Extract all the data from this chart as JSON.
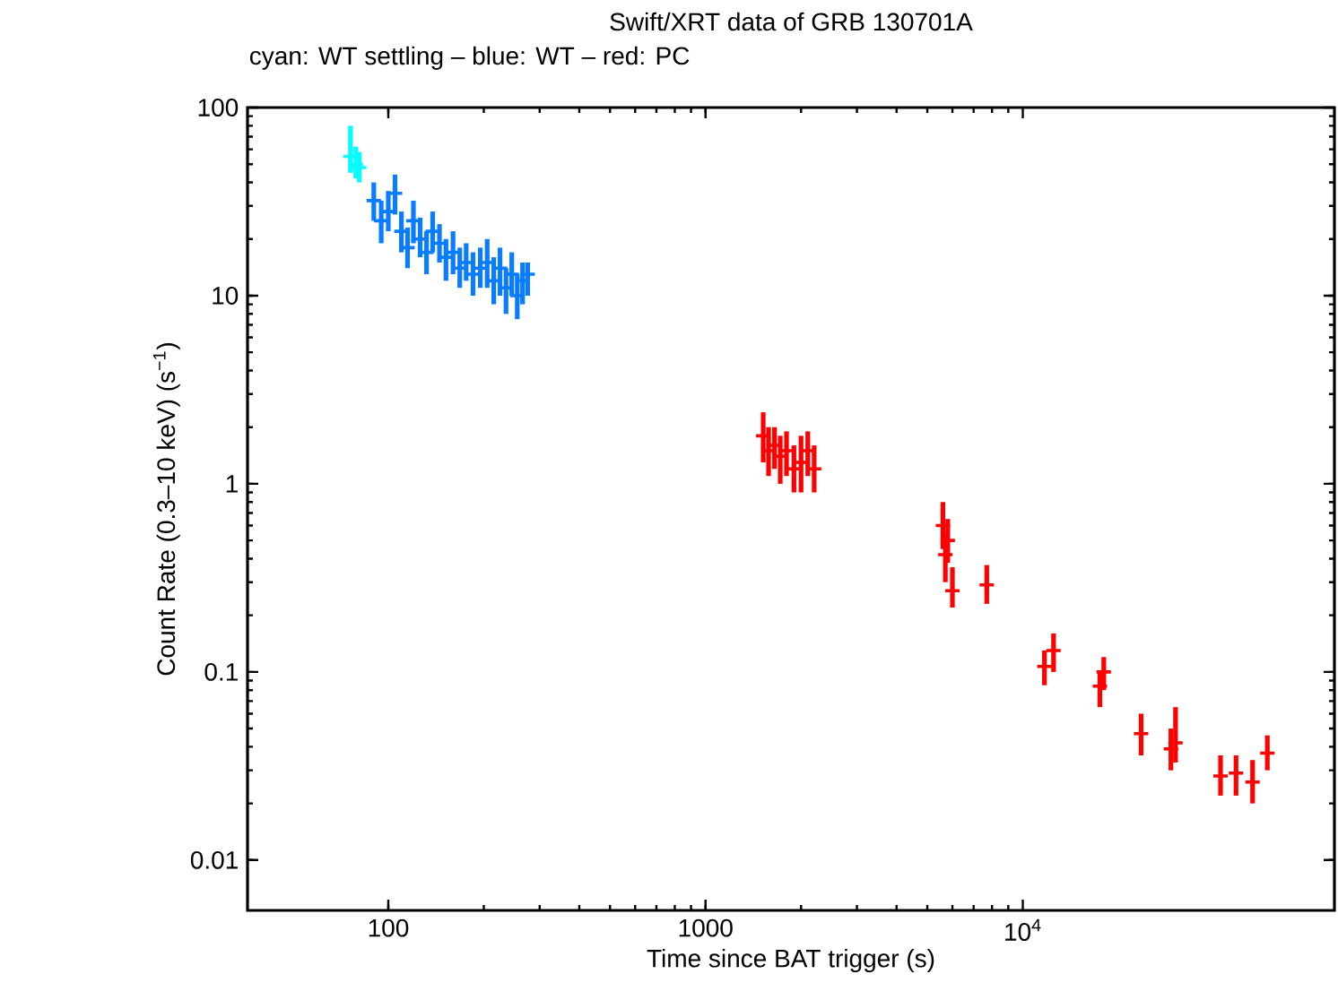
{
  "chart_data": {
    "type": "scatter",
    "title": "Swift/XRT data of GRB 130701A",
    "subtitle": "cyan: WT settling – blue: WT – red: PC",
    "xlabel": "Time since BAT trigger (s)",
    "ylabel": "Count Rate (0.3–10 keV) (s$^{−1}$)",
    "log": "xy",
    "marker": "cross",
    "grid": false,
    "xlim": [
      36,
      96000
    ],
    "ylim": [
      0.0054,
      100
    ],
    "xticks": [
      100,
      1000,
      {
        "value": 10000,
        "label": "10$^{4}$"
      }
    ],
    "yticks": [
      0.01,
      0.1,
      1,
      10,
      100
    ],
    "series": [
      {
        "color": "#00ffff",
        "x": [
          76,
          79,
          81
        ],
        "values": [
          55,
          50,
          48
        ],
        "errors": [
          [
            45,
            80
          ],
          [
            42,
            62
          ],
          [
            40,
            58
          ]
        ]
      },
      {
        "color": "#0a7cff",
        "x": [
          90,
          95,
          100,
          105,
          110,
          115,
          120,
          126,
          132,
          138,
          145,
          152,
          160,
          168,
          176,
          185,
          195,
          205,
          215,
          225,
          235,
          245,
          255,
          265,
          275
        ],
        "values": [
          32,
          25,
          28,
          35,
          22,
          18,
          25,
          20,
          17,
          22,
          19,
          16,
          17,
          14,
          15,
          13,
          14,
          15,
          12,
          14,
          11,
          13,
          10,
          12,
          13
        ],
        "errors": [
          [
            25,
            40
          ],
          [
            19,
            32
          ],
          [
            22,
            36
          ],
          [
            27,
            44
          ],
          [
            17,
            28
          ],
          [
            14,
            23
          ],
          [
            19,
            32
          ],
          [
            16,
            26
          ],
          [
            13,
            22
          ],
          [
            17,
            28
          ],
          [
            15,
            24
          ],
          [
            12,
            20
          ],
          [
            13,
            22
          ],
          [
            11,
            18
          ],
          [
            12,
            19
          ],
          [
            10,
            17
          ],
          [
            11,
            18
          ],
          [
            11,
            20
          ],
          [
            9,
            16
          ],
          [
            10,
            18
          ],
          [
            8,
            14
          ],
          [
            10,
            17
          ],
          [
            7.5,
            13
          ],
          [
            9,
            15
          ],
          [
            10,
            15
          ]
        ]
      },
      {
        "color": "#ff0000",
        "x": [
          1520,
          1580,
          1650,
          1720,
          1800,
          1900,
          2000,
          2100,
          2200,
          5600,
          5700,
          5800,
          6000,
          7700,
          11700,
          12500,
          17500,
          18000,
          23600,
          29300,
          30300,
          42000,
          47000,
          53000,
          59000
        ],
        "values": [
          1.8,
          1.5,
          1.6,
          1.4,
          1.5,
          1.2,
          1.3,
          1.5,
          1.2,
          0.6,
          0.42,
          0.5,
          0.27,
          0.29,
          0.107,
          0.13,
          0.084,
          0.1,
          0.047,
          0.039,
          0.042,
          0.028,
          0.029,
          0.026,
          0.037
        ],
        "errors": [
          [
            1.3,
            2.4
          ],
          [
            1.1,
            2.0
          ],
          [
            1.2,
            2.0
          ],
          [
            1.0,
            1.8
          ],
          [
            1.1,
            1.9
          ],
          [
            0.9,
            1.6
          ],
          [
            0.9,
            1.8
          ],
          [
            1.1,
            1.9
          ],
          [
            0.9,
            1.6
          ],
          [
            0.45,
            0.8
          ],
          [
            0.3,
            0.55
          ],
          [
            0.38,
            0.65
          ],
          [
            0.22,
            0.36
          ],
          [
            0.23,
            0.37
          ],
          [
            0.085,
            0.13
          ],
          [
            0.1,
            0.16
          ],
          [
            0.065,
            0.1
          ],
          [
            0.08,
            0.12
          ],
          [
            0.036,
            0.06
          ],
          [
            0.03,
            0.05
          ],
          [
            0.033,
            0.065
          ],
          [
            0.022,
            0.036
          ],
          [
            0.022,
            0.036
          ],
          [
            0.02,
            0.034
          ],
          [
            0.03,
            0.046
          ]
        ]
      }
    ]
  }
}
